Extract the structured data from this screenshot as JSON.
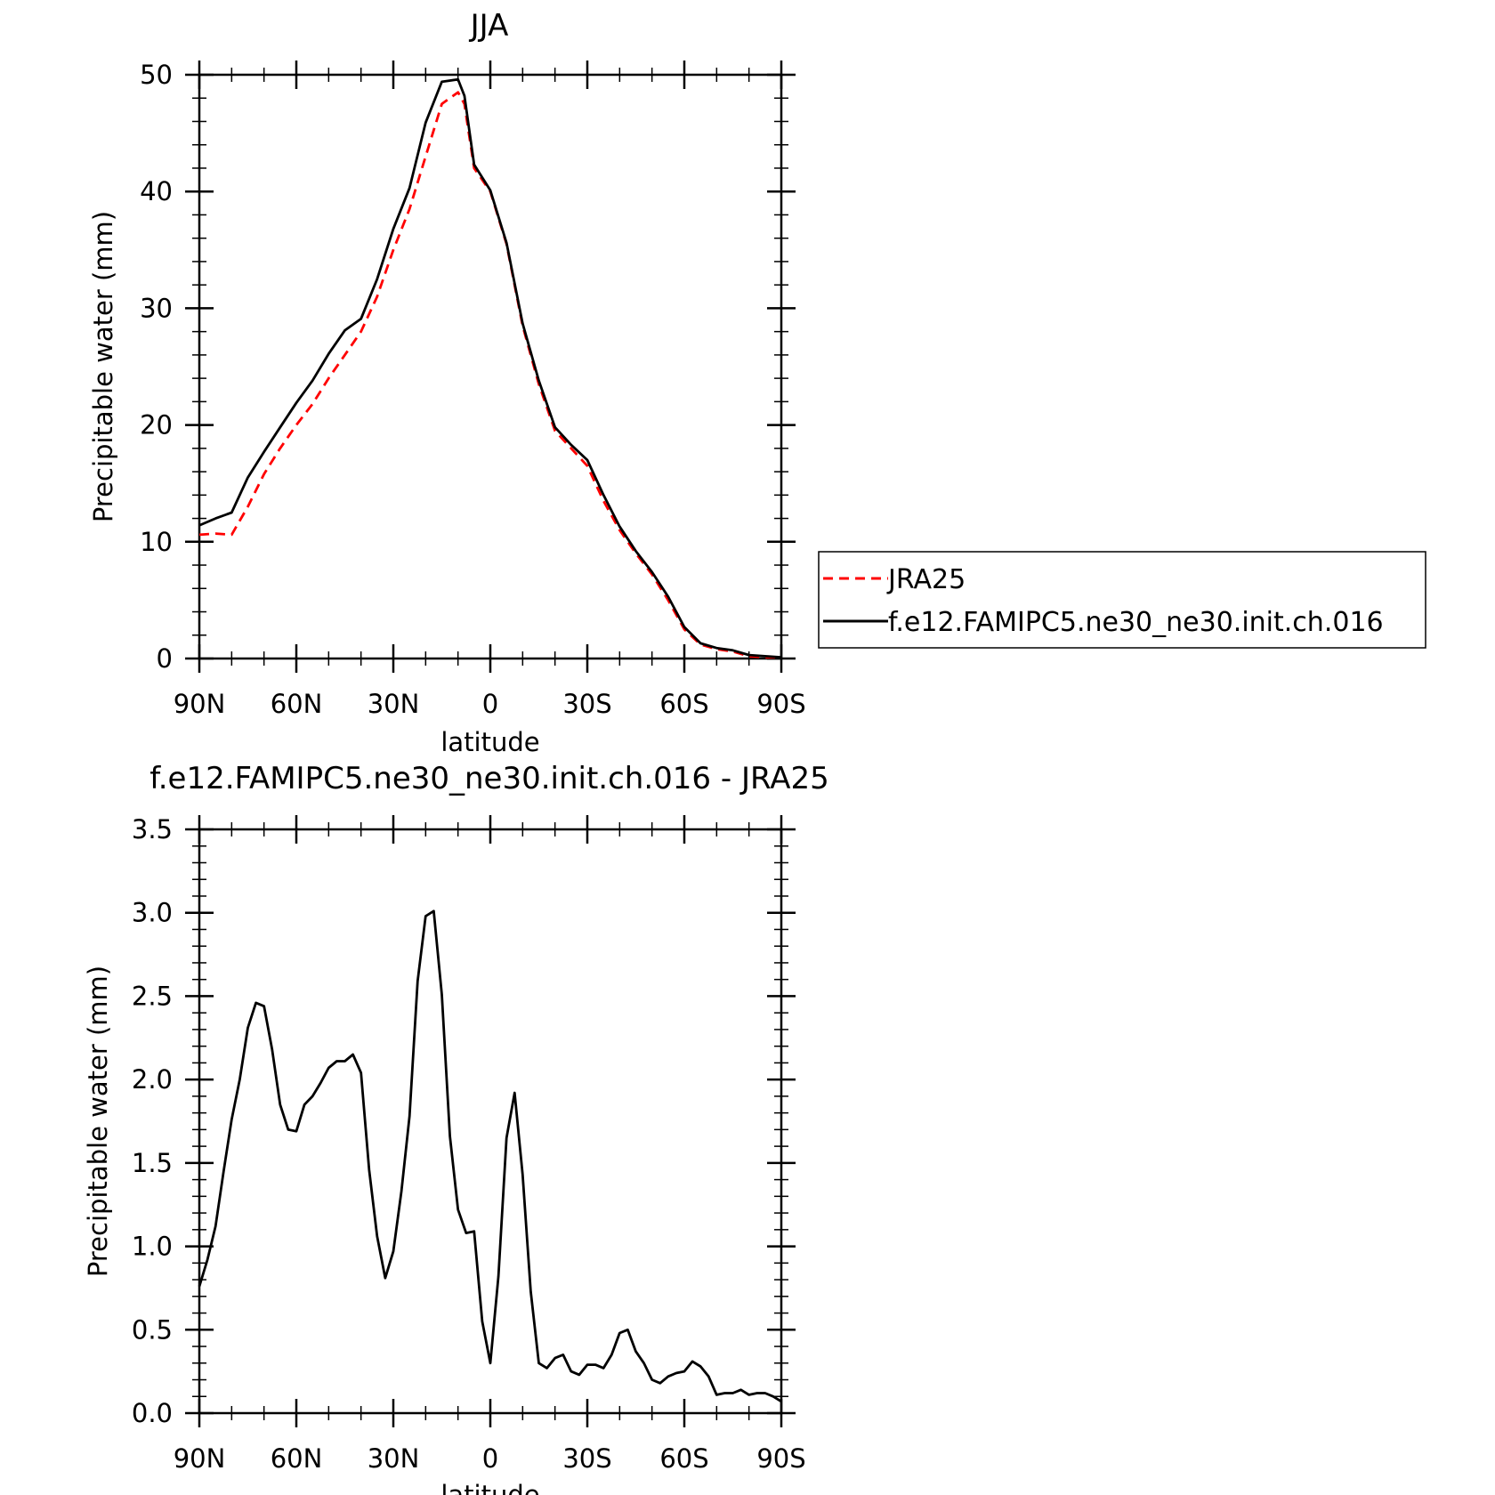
{
  "charts": [
    {
      "type": "line",
      "title": "JJA",
      "xlabel": "latitude",
      "ylabel": "Precipitable water (mm)",
      "xlim": [
        90,
        -90
      ],
      "ylim": [
        0,
        50
      ],
      "xticks": [
        {
          "v": 90,
          "label": "90N"
        },
        {
          "v": 60,
          "label": "60N"
        },
        {
          "v": 30,
          "label": "30N"
        },
        {
          "v": 0,
          "label": "0"
        },
        {
          "v": -30,
          "label": "30S"
        },
        {
          "v": -60,
          "label": "60S"
        },
        {
          "v": -90,
          "label": "90S"
        }
      ],
      "yticks": [
        {
          "v": 0,
          "label": "0"
        },
        {
          "v": 10,
          "label": "10"
        },
        {
          "v": 20,
          "label": "20"
        },
        {
          "v": 30,
          "label": "30"
        },
        {
          "v": 40,
          "label": "40"
        },
        {
          "v": 50,
          "label": "50"
        }
      ],
      "legend": {
        "placement": "right"
      },
      "series": [
        {
          "name": "JRA25",
          "color": "#ff0000",
          "style": "dashed",
          "x": [
            90,
            85,
            80,
            75,
            70,
            65,
            60,
            55,
            50,
            45,
            40,
            35,
            30,
            25,
            20,
            15,
            10,
            8,
            5,
            0,
            -5,
            -10,
            -15,
            -20,
            -25,
            -30,
            -35,
            -40,
            -45,
            -50,
            -55,
            -60,
            -65,
            -70,
            -75,
            -80,
            -85,
            -90
          ],
          "y": [
            10.6,
            10.7,
            10.6,
            13.0,
            15.8,
            18.0,
            20.0,
            21.8,
            24.0,
            26.0,
            28.0,
            31.0,
            35.0,
            38.5,
            43.0,
            47.5,
            48.5,
            47.5,
            42.0,
            40.0,
            35.5,
            28.5,
            23.5,
            19.5,
            18.0,
            16.5,
            13.5,
            11.0,
            9.0,
            7.2,
            5.0,
            2.5,
            1.2,
            0.8,
            0.6,
            0.2,
            0.1,
            0.1
          ]
        },
        {
          "name": "f.e12.FAMIPC5.ne30_ne30.init.ch.016",
          "color": "#000000",
          "style": "solid",
          "x": [
            90,
            85,
            80,
            75,
            70,
            65,
            60,
            55,
            50,
            45,
            40,
            35,
            30,
            25,
            20,
            15,
            10,
            8,
            5,
            0,
            -5,
            -10,
            -15,
            -20,
            -25,
            -30,
            -35,
            -40,
            -45,
            -50,
            -55,
            -60,
            -65,
            -70,
            -75,
            -80,
            -85,
            -90
          ],
          "y": [
            11.4,
            12.0,
            12.5,
            15.5,
            17.7,
            19.8,
            21.9,
            23.8,
            26.1,
            28.1,
            29.1,
            32.5,
            36.8,
            40.3,
            45.9,
            49.4,
            49.6,
            48.2,
            42.3,
            40.1,
            35.6,
            28.7,
            23.8,
            19.8,
            18.3,
            17.0,
            14.0,
            11.3,
            9.2,
            7.4,
            5.3,
            2.7,
            1.3,
            0.9,
            0.7,
            0.3,
            0.2,
            0.1
          ]
        }
      ]
    },
    {
      "type": "line",
      "title": "f.e12.FAMIPC5.ne30_ne30.init.ch.016 - JRA25",
      "xlabel": "latitude",
      "ylabel": "Precipitable water (mm)",
      "xlim": [
        90,
        -90
      ],
      "ylim": [
        0,
        3.5
      ],
      "xticks": [
        {
          "v": 90,
          "label": "90N"
        },
        {
          "v": 60,
          "label": "60N"
        },
        {
          "v": 30,
          "label": "30N"
        },
        {
          "v": 0,
          "label": "0"
        },
        {
          "v": -30,
          "label": "30S"
        },
        {
          "v": -60,
          "label": "60S"
        },
        {
          "v": -90,
          "label": "90S"
        }
      ],
      "yticks": [
        {
          "v": 0,
          "label": "0.0"
        },
        {
          "v": 0.5,
          "label": "0.5"
        },
        {
          "v": 1.0,
          "label": "1.0"
        },
        {
          "v": 1.5,
          "label": "1.5"
        },
        {
          "v": 2.0,
          "label": "2.0"
        },
        {
          "v": 2.5,
          "label": "2.5"
        },
        {
          "v": 3.0,
          "label": "3.0"
        },
        {
          "v": 3.5,
          "label": "3.5"
        }
      ],
      "series": [
        {
          "color": "#000000",
          "style": "solid",
          "x": [
            90,
            87.5,
            85,
            82.5,
            80,
            77.5,
            75,
            72.5,
            70,
            67.5,
            65,
            62.5,
            60,
            57.5,
            55,
            52.5,
            50,
            47.5,
            45,
            42.5,
            40,
            37.5,
            35,
            32.5,
            30,
            27.5,
            25,
            22.5,
            20,
            17.5,
            15,
            12.5,
            10,
            7.5,
            5,
            2.5,
            0,
            -2.5,
            -5,
            -7.5,
            -10,
            -12.5,
            -15,
            -17.5,
            -20,
            -22.5,
            -25,
            -27.5,
            -30,
            -32.5,
            -35,
            -37.5,
            -40,
            -42.5,
            -45,
            -47.5,
            -50,
            -52.5,
            -55,
            -57.5,
            -60,
            -62.5,
            -65,
            -67.5,
            -70,
            -72.5,
            -75,
            -77.5,
            -80,
            -82.5,
            -85,
            -87.5,
            -90
          ],
          "y": [
            0.76,
            0.92,
            1.12,
            1.45,
            1.76,
            2.0,
            2.31,
            2.46,
            2.44,
            2.18,
            1.85,
            1.7,
            1.69,
            1.85,
            1.9,
            1.98,
            2.07,
            2.11,
            2.11,
            2.15,
            2.04,
            1.46,
            1.06,
            0.81,
            0.97,
            1.33,
            1.78,
            2.59,
            2.98,
            3.01,
            2.51,
            1.66,
            1.22,
            1.08,
            1.09,
            0.55,
            0.3,
            0.82,
            1.65,
            1.92,
            1.43,
            0.73,
            0.3,
            0.27,
            0.33,
            0.35,
            0.25,
            0.23,
            0.29,
            0.29,
            0.27,
            0.35,
            0.48,
            0.5,
            0.37,
            0.3,
            0.2,
            0.18,
            0.22,
            0.24,
            0.25,
            0.31,
            0.28,
            0.22,
            0.11,
            0.12,
            0.12,
            0.14,
            0.11,
            0.12,
            0.12,
            0.1,
            0.07
          ]
        }
      ]
    }
  ]
}
